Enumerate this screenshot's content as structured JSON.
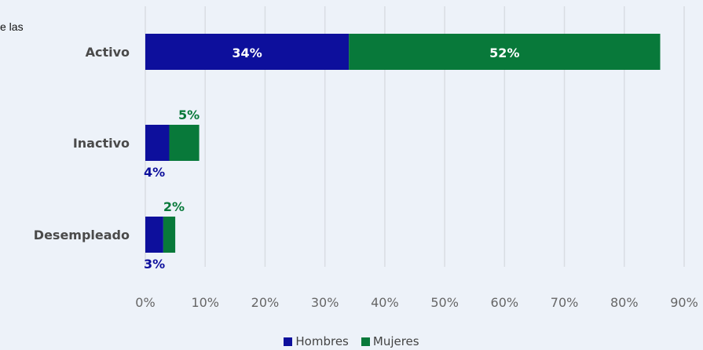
{
  "fragment_text": "e las",
  "chart_data": {
    "type": "bar",
    "orientation": "horizontal",
    "stacked": true,
    "categories": [
      "Activo",
      "Inactivo",
      "Desempleado"
    ],
    "series": [
      {
        "name": "Hombres",
        "color": "#0d0f9c",
        "values": [
          34,
          4,
          3
        ],
        "labels": [
          "34%",
          "4%",
          "3%"
        ]
      },
      {
        "name": "Mujeres",
        "color": "#08793a",
        "values": [
          52,
          5,
          2
        ],
        "labels": [
          "52%",
          "5%",
          "2%"
        ]
      }
    ],
    "x_ticks": [
      "0%",
      "10%",
      "20%",
      "30%",
      "40%",
      "50%",
      "60%",
      "70%",
      "80%",
      "90%"
    ],
    "xlim": [
      0,
      90
    ],
    "grid": true,
    "legend_position": "bottom"
  }
}
